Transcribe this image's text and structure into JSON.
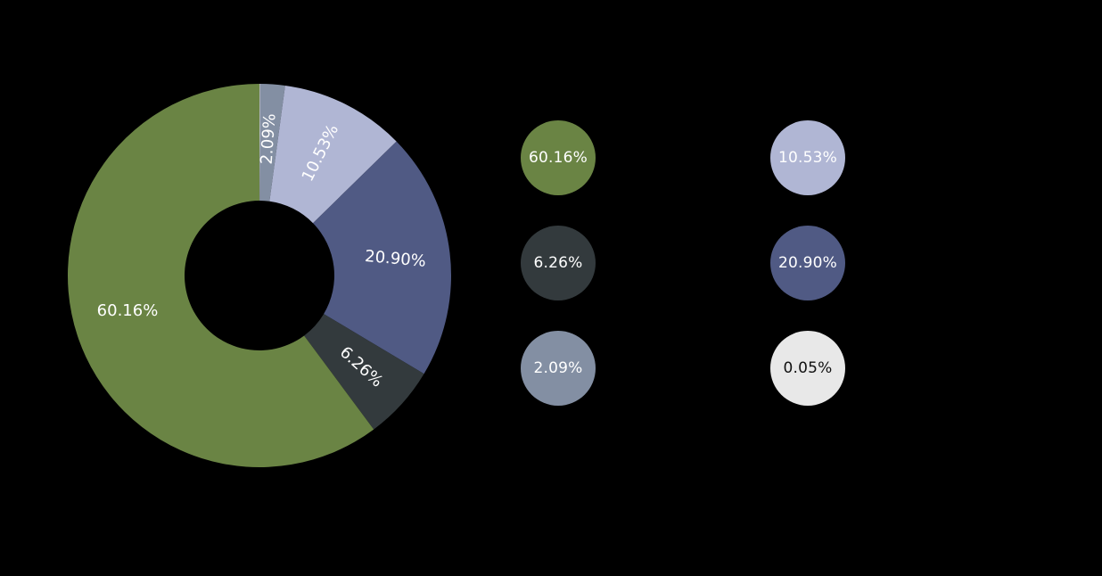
{
  "chart_data": {
    "type": "pie",
    "variant": "donut",
    "title": "",
    "start_angle": "12 o'clock, clockwise",
    "slices": [
      {
        "label": "0.05%",
        "value": 0.05,
        "color": "#e8e8e8"
      },
      {
        "label": "2.09%",
        "value": 2.09,
        "color": "#838fa3"
      },
      {
        "label": "10.53%",
        "value": 10.53,
        "color": "#b0b6d4"
      },
      {
        "label": "20.90%",
        "value": 20.9,
        "color": "#505a84"
      },
      {
        "label": "6.26%",
        "value": 6.26,
        "color": "#333a3d"
      },
      {
        "label": "60.16%",
        "value": 60.16,
        "color": "#6a8444"
      }
    ],
    "values": [
      0.05,
      2.09,
      10.53,
      20.9,
      6.26,
      60.16
    ],
    "legend_position": "right",
    "background": "#000000"
  },
  "legend": {
    "items": [
      {
        "value": "60.16%",
        "color": "#6a8444",
        "text_color": "#ffffff"
      },
      {
        "value": "10.53%",
        "color": "#b0b6d4",
        "text_color": "#ffffff"
      },
      {
        "value": "6.26%",
        "color": "#333a3d",
        "text_color": "#ffffff"
      },
      {
        "value": "20.90%",
        "color": "#505a84",
        "text_color": "#ffffff"
      },
      {
        "value": "2.09%",
        "color": "#838fa3",
        "text_color": "#ffffff"
      },
      {
        "value": "0.05%",
        "color": "#e8e8e8",
        "text_color": "#111111"
      }
    ]
  }
}
